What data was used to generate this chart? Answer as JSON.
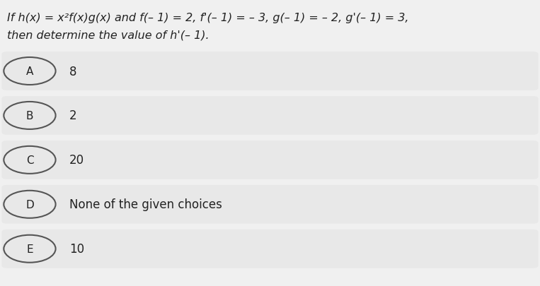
{
  "background_color": "#f0f0f0",
  "question_line1": "If h(x) = x²f(x)g(x) and f(– 1) = 2, f'(– 1) = – 3, g(– 1) = – 2, g'(– 1) = 3,",
  "question_line2": "then determine the value of h'(– 1).",
  "choices": [
    {
      "label": "A",
      "text": "8"
    },
    {
      "label": "B",
      "text": "2"
    },
    {
      "label": "C",
      "text": "20"
    },
    {
      "label": "D",
      "text": "None of the given choices"
    },
    {
      "label": "E",
      "text": "10"
    }
  ],
  "choice_bg_color": "#e8e8e8",
  "circle_edge_color": "#555555",
  "text_color": "#222222",
  "question_font_size": 11.5,
  "choice_font_size": 12,
  "label_font_size": 11
}
